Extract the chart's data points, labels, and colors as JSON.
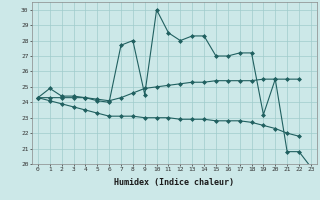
{
  "xlabel": "Humidex (Indice chaleur)",
  "background_color": "#cce8e8",
  "grid_color": "#a0cccc",
  "line_color": "#206060",
  "xlim": [
    -0.5,
    23.5
  ],
  "ylim": [
    20,
    30.5
  ],
  "yticks": [
    20,
    21,
    22,
    23,
    24,
    25,
    26,
    27,
    28,
    29,
    30
  ],
  "xticks": [
    0,
    1,
    2,
    3,
    4,
    5,
    6,
    7,
    8,
    9,
    10,
    11,
    12,
    13,
    14,
    15,
    16,
    17,
    18,
    19,
    20,
    21,
    22,
    23
  ],
  "series": [
    {
      "x": [
        0,
        1,
        2,
        3,
        4,
        5,
        6,
        7,
        8,
        9,
        10,
        11,
        12,
        13,
        14,
        15,
        16,
        17,
        18,
        19,
        20,
        21,
        22,
        23
      ],
      "y": [
        24.3,
        24.9,
        24.4,
        24.4,
        24.3,
        24.1,
        24.0,
        27.7,
        28.0,
        24.5,
        30.0,
        28.5,
        28.0,
        28.3,
        28.3,
        27.0,
        27.0,
        27.2,
        27.2,
        23.2,
        25.5,
        20.8,
        20.8,
        19.8
      ]
    },
    {
      "x": [
        0,
        1,
        2,
        3,
        4,
        5,
        6,
        7,
        8,
        9,
        10,
        11,
        12,
        13,
        14,
        15,
        16,
        17,
        18,
        19,
        20,
        21,
        22
      ],
      "y": [
        24.3,
        24.3,
        24.3,
        24.3,
        24.3,
        24.2,
        24.1,
        24.3,
        24.6,
        24.9,
        25.0,
        25.1,
        25.2,
        25.3,
        25.3,
        25.4,
        25.4,
        25.4,
        25.4,
        25.5,
        25.5,
        25.5,
        25.5
      ]
    },
    {
      "x": [
        0,
        1,
        2,
        3,
        4,
        5,
        6,
        7,
        8,
        9,
        10,
        11,
        12,
        13,
        14,
        15,
        16,
        17,
        18,
        19,
        20,
        21,
        22
      ],
      "y": [
        24.3,
        24.1,
        23.9,
        23.7,
        23.5,
        23.3,
        23.1,
        23.1,
        23.1,
        23.0,
        23.0,
        23.0,
        22.9,
        22.9,
        22.9,
        22.8,
        22.8,
        22.8,
        22.7,
        22.5,
        22.3,
        22.0,
        21.8
      ]
    }
  ]
}
